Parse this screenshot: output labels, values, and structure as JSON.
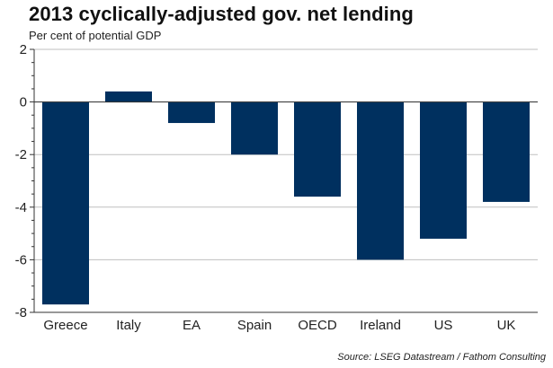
{
  "chart_data": {
    "type": "bar",
    "title": "2013 cyclically-adjusted gov. net lending",
    "subtitle": "Per cent of potential GDP",
    "source": "Source: LSEG Datastream / Fathom Consulting",
    "categories": [
      "Greece",
      "Italy",
      "EA",
      "Spain",
      "OECD",
      "Ireland",
      "US",
      "UK"
    ],
    "values": [
      -7.7,
      0.4,
      -0.8,
      -2.0,
      -3.6,
      -6.0,
      -5.2,
      -3.8
    ],
    "ylim": [
      -8,
      2
    ],
    "yticks": [
      2,
      0,
      -2,
      -4,
      -6,
      -8
    ],
    "xlabel": "",
    "ylabel": "",
    "grid": true,
    "bar_color": "#00305f",
    "grid_color": "#bfbfbf"
  }
}
